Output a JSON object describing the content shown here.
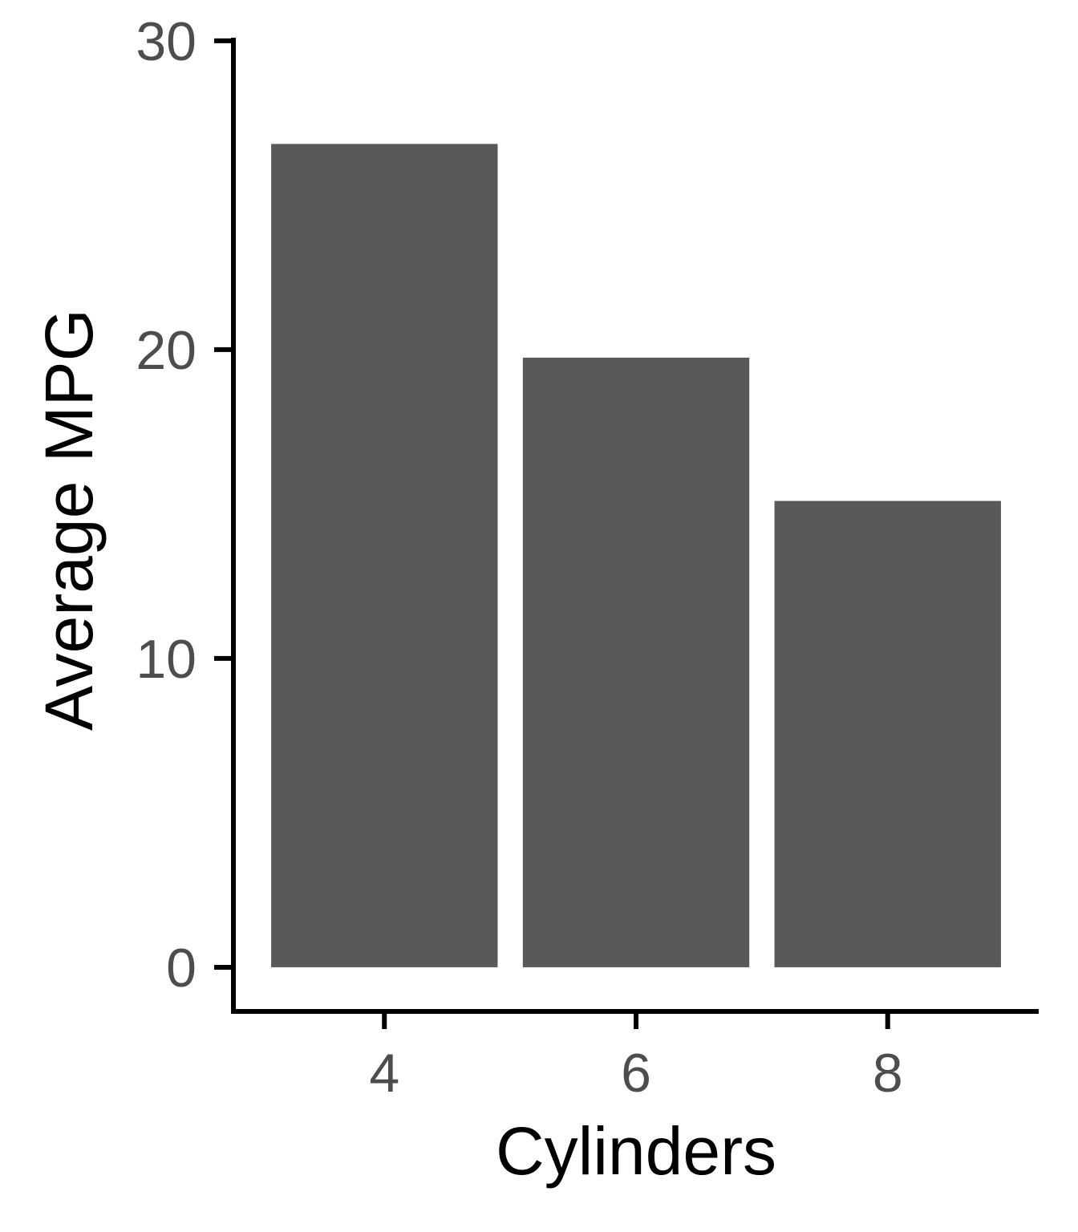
{
  "chart_data": {
    "type": "bar",
    "categories": [
      "4",
      "6",
      "8"
    ],
    "values": [
      26.66,
      19.74,
      15.1
    ],
    "title": "",
    "xlabel": "Cylinders",
    "ylabel": "Average MPG",
    "ylim": [
      -1.43,
      30.1
    ],
    "yticks": [
      0,
      10,
      20,
      30
    ],
    "grid": false,
    "legend": "none",
    "bar_color": "#595959",
    "axis_color": "#000000",
    "tick_label_color": "#4d4d4d"
  }
}
